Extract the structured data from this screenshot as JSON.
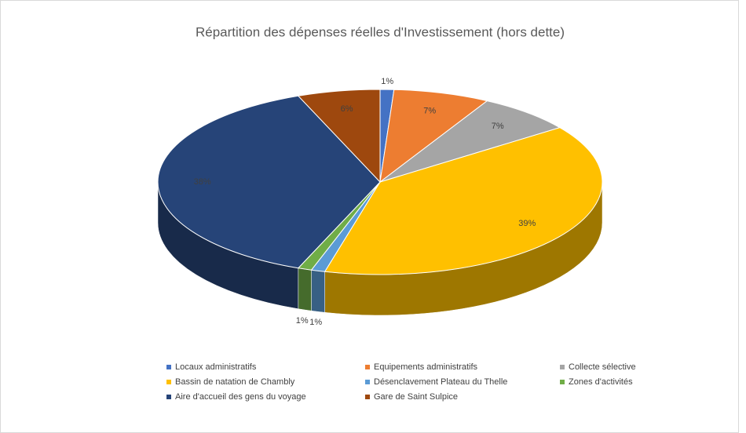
{
  "chart_data": {
    "type": "pie3d",
    "title": "Répartition des dépenses réelles d'Investissement (hors dette)",
    "categories": [
      "Locaux administratifs",
      "Equipements administratifs",
      "Collecte sélective",
      "Bassin de natation de Chambly",
      "Désenclavement Plateau du Thelle",
      "Zones d'activités",
      "Aire d'accueil des gens du voyage",
      "Gare de Saint Sulpice"
    ],
    "values": [
      1,
      7,
      7,
      39,
      1,
      1,
      38,
      6
    ],
    "value_labels": [
      "1%",
      "7%",
      "7%",
      "39%",
      "1%",
      "1%",
      "38%",
      "6%"
    ],
    "colors": [
      "#4472c4",
      "#ed7d31",
      "#a5a5a5",
      "#ffc000",
      "#5b9bd5",
      "#70ad47",
      "#264478",
      "#9e480e"
    ],
    "legend": "bottom"
  }
}
